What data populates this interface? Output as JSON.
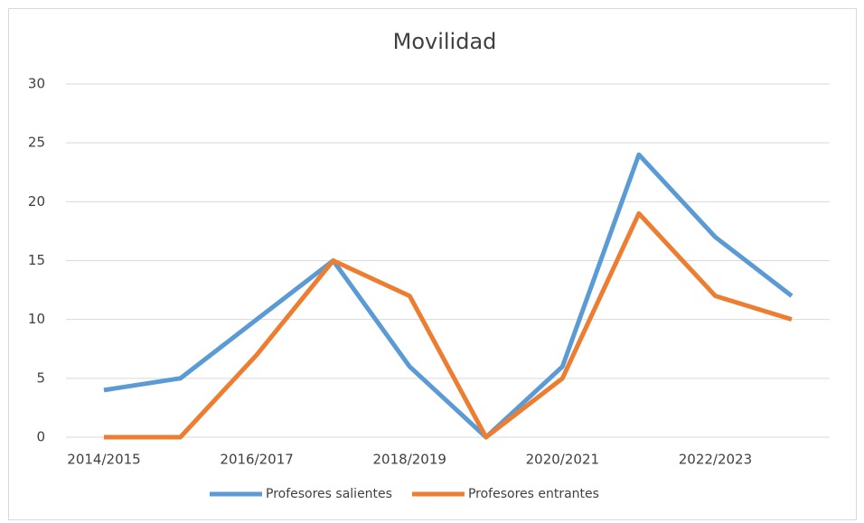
{
  "chart_data": {
    "type": "line",
    "title": "Movilidad",
    "categories": [
      "2014/2015",
      null,
      "2016/2017",
      null,
      "2018/2019",
      null,
      "2020/2021",
      null,
      "2022/2023",
      null
    ],
    "series": [
      {
        "name": "Profesores salientes",
        "color": "#5b9bd5",
        "values": [
          4,
          5,
          10,
          15,
          6,
          0,
          6,
          24,
          17,
          12
        ]
      },
      {
        "name": "Profesores entrantes",
        "color": "#ed7d31",
        "values": [
          0,
          0,
          7,
          15,
          12,
          0,
          5,
          19,
          12,
          10
        ]
      }
    ],
    "ylim": [
      0,
      30
    ],
    "yticks": [
      0,
      5,
      10,
      15,
      20,
      25,
      30
    ],
    "grid": true,
    "legend": "bottom"
  }
}
